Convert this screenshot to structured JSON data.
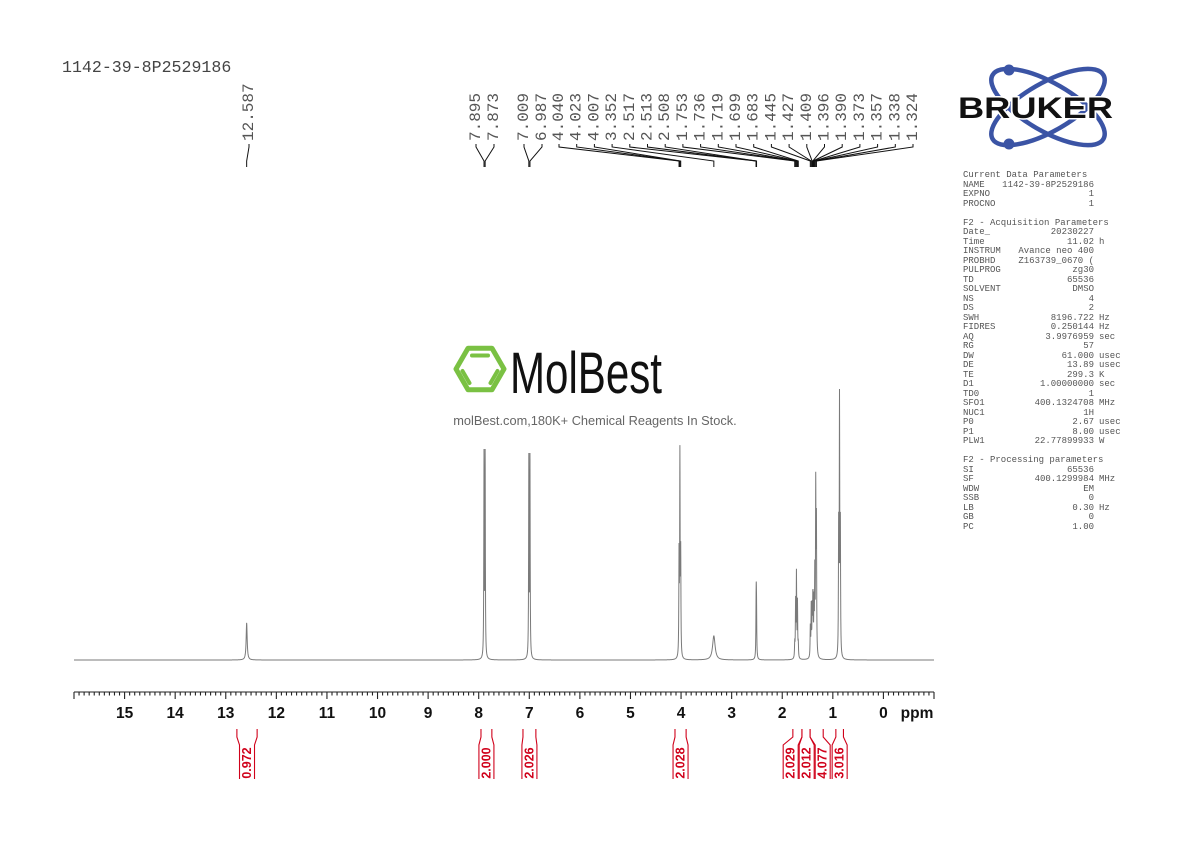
{
  "document": {
    "sample_id": "1142-39-8P2529186"
  },
  "watermark": {
    "brand": "MolBest",
    "tagline": "molBest.com,180K+ Chemical Reagents In Stock.",
    "brand_color": "#7ac143"
  },
  "logo": {
    "brand": "BRUKER",
    "orbit_color": "#3b54a5"
  },
  "parameters": {
    "sections": [
      {
        "title": "Current Data Parameters",
        "rows": [
          {
            "key": "NAME",
            "value": "1142-39-8P2529186",
            "unit": ""
          },
          {
            "key": "EXPNO",
            "value": "1",
            "unit": ""
          },
          {
            "key": "PROCNO",
            "value": "1",
            "unit": ""
          }
        ]
      },
      {
        "title": "F2 - Acquisition Parameters",
        "rows": [
          {
            "key": "Date_",
            "value": "20230227",
            "unit": ""
          },
          {
            "key": "Time",
            "value": "11.02",
            "unit": "h"
          },
          {
            "key": "INSTRUM",
            "value": "Avance neo 400",
            "unit": ""
          },
          {
            "key": "PROBHD",
            "value": "Z163739_0670 (",
            "unit": ""
          },
          {
            "key": "PULPROG",
            "value": "zg30",
            "unit": ""
          },
          {
            "key": "TD",
            "value": "65536",
            "unit": ""
          },
          {
            "key": "SOLVENT",
            "value": "DMSO",
            "unit": ""
          },
          {
            "key": "NS",
            "value": "4",
            "unit": ""
          },
          {
            "key": "DS",
            "value": "2",
            "unit": ""
          },
          {
            "key": "SWH",
            "value": "8196.722",
            "unit": "Hz"
          },
          {
            "key": "FIDRES",
            "value": "0.250144",
            "unit": "Hz"
          },
          {
            "key": "AQ",
            "value": "3.9976959",
            "unit": "sec"
          },
          {
            "key": "RG",
            "value": "57",
            "unit": ""
          },
          {
            "key": "DW",
            "value": "61.000",
            "unit": "usec"
          },
          {
            "key": "DE",
            "value": "13.89",
            "unit": "usec"
          },
          {
            "key": "TE",
            "value": "299.3",
            "unit": "K"
          },
          {
            "key": "D1",
            "value": "1.00000000",
            "unit": "sec"
          },
          {
            "key": "TD0",
            "value": "1",
            "unit": ""
          },
          {
            "key": "SFO1",
            "value": "400.1324708",
            "unit": "MHz"
          },
          {
            "key": "NUC1",
            "value": "1H",
            "unit": ""
          },
          {
            "key": "P0",
            "value": "2.67",
            "unit": "usec"
          },
          {
            "key": "P1",
            "value": "8.00",
            "unit": "usec"
          },
          {
            "key": "PLW1",
            "value": "22.77899933",
            "unit": "W"
          }
        ]
      },
      {
        "title": "F2 - Processing parameters",
        "rows": [
          {
            "key": "SI",
            "value": "65536",
            "unit": ""
          },
          {
            "key": "SF",
            "value": "400.1299984",
            "unit": "MHz"
          },
          {
            "key": "WDW",
            "value": "EM",
            "unit": ""
          },
          {
            "key": "SSB",
            "value": "0",
            "unit": ""
          },
          {
            "key": "LB",
            "value": "0.30",
            "unit": "Hz"
          },
          {
            "key": "GB",
            "value": "0",
            "unit": ""
          },
          {
            "key": "PC",
            "value": "1.00",
            "unit": ""
          }
        ]
      }
    ]
  },
  "chart_data": {
    "type": "line",
    "title": "1142-39-8P2529186",
    "xlabel": "ppm",
    "ylabel": "",
    "xlim": [
      16,
      -1
    ],
    "x_ticks": [
      15,
      14,
      13,
      12,
      11,
      10,
      9,
      8,
      7,
      6,
      5,
      4,
      3,
      2,
      1,
      0
    ],
    "x_tick_labels": [
      "15",
      "14",
      "13",
      "12",
      "11",
      "10",
      "9",
      "8",
      "7",
      "6",
      "5",
      "4",
      "3",
      "2",
      "1",
      "0"
    ],
    "minor_tick_step": 0.1,
    "grid": false,
    "legend": "none",
    "y_scale": "relative intensity (tallest peak = 100)",
    "default_hwhm": 0.005,
    "lines": [
      {
        "ppm": 12.587,
        "intensity": 13.7,
        "hwhm": 0.012
      },
      {
        "ppm": 7.895,
        "intensity": 74.2
      },
      {
        "ppm": 7.873,
        "intensity": 74.2
      },
      {
        "ppm": 7.009,
        "intensity": 72.8
      },
      {
        "ppm": 6.987,
        "intensity": 72.8
      },
      {
        "ppm": 4.04,
        "intensity": 36.5
      },
      {
        "ppm": 4.023,
        "intensity": 73.1
      },
      {
        "ppm": 4.007,
        "intensity": 36.5
      },
      {
        "ppm": 3.352,
        "intensity": 8.9,
        "hwhm": 0.03
      },
      {
        "ppm": 2.517,
        "intensity": 13.0
      },
      {
        "ppm": 2.513,
        "intensity": 14.5
      },
      {
        "ppm": 2.508,
        "intensity": 13.0
      },
      {
        "ppm": 1.753,
        "intensity": 5.1
      },
      {
        "ppm": 1.736,
        "intensity": 20.3
      },
      {
        "ppm": 1.719,
        "intensity": 30.6
      },
      {
        "ppm": 1.699,
        "intensity": 20.3
      },
      {
        "ppm": 1.683,
        "intensity": 5.1
      },
      {
        "ppm": 1.445,
        "intensity": 11.1
      },
      {
        "ppm": 1.427,
        "intensity": 18.5
      },
      {
        "ppm": 1.409,
        "intensity": 16.6
      },
      {
        "ppm": 1.396,
        "intensity": 14.8
      },
      {
        "ppm": 1.39,
        "intensity": 14.8
      },
      {
        "ppm": 1.373,
        "intensity": 18.5
      },
      {
        "ppm": 1.357,
        "intensity": 29.5
      },
      {
        "ppm": 1.338,
        "intensity": 61.3
      },
      {
        "ppm": 1.324,
        "intensity": 48.0
      },
      {
        "ppm": 0.885,
        "intensity": 46.3
      },
      {
        "ppm": 0.868,
        "intensity": 92.6
      },
      {
        "ppm": 0.851,
        "intensity": 46.3
      }
    ],
    "peak_labels": [
      {
        "label": "12.587",
        "ppm": 12.587
      },
      {
        "label": "7.895",
        "ppm": 7.895
      },
      {
        "label": "7.873",
        "ppm": 7.873
      },
      {
        "label": "7.009",
        "ppm": 7.009
      },
      {
        "label": "6.987",
        "ppm": 6.987
      },
      {
        "label": "4.040",
        "ppm": 4.04
      },
      {
        "label": "4.023",
        "ppm": 4.023
      },
      {
        "label": "4.007",
        "ppm": 4.007
      },
      {
        "label": "3.352",
        "ppm": 3.352
      },
      {
        "label": "2.517",
        "ppm": 2.517
      },
      {
        "label": "2.513",
        "ppm": 2.513
      },
      {
        "label": "2.508",
        "ppm": 2.508
      },
      {
        "label": "1.753",
        "ppm": 1.753
      },
      {
        "label": "1.736",
        "ppm": 1.736
      },
      {
        "label": "1.719",
        "ppm": 1.719
      },
      {
        "label": "1.699",
        "ppm": 1.699
      },
      {
        "label": "1.683",
        "ppm": 1.683
      },
      {
        "label": "1.445",
        "ppm": 1.445
      },
      {
        "label": "1.427",
        "ppm": 1.427
      },
      {
        "label": "1.409",
        "ppm": 1.409
      },
      {
        "label": "1.396",
        "ppm": 1.396
      },
      {
        "label": "1.390",
        "ppm": 1.39
      },
      {
        "label": "1.373",
        "ppm": 1.373
      },
      {
        "label": "1.357",
        "ppm": 1.357
      },
      {
        "label": "1.338",
        "ppm": 1.338
      },
      {
        "label": "1.324",
        "ppm": 1.324
      }
    ],
    "integral_color": "#d0021b",
    "integrals": [
      {
        "value": "0.972",
        "from_ppm": 12.78,
        "to_ppm": 12.38
      },
      {
        "value": "2.000",
        "from_ppm": 7.955,
        "to_ppm": 7.74
      },
      {
        "value": "2.026",
        "from_ppm": 7.125,
        "to_ppm": 6.87
      },
      {
        "value": "2.028",
        "from_ppm": 4.12,
        "to_ppm": 3.9
      },
      {
        "value": "2.029",
        "from_ppm": 1.79,
        "to_ppm": 1.61
      },
      {
        "value": "2.012",
        "from_ppm": 1.61,
        "to_ppm": 1.45
      },
      {
        "value": "4.077",
        "from_ppm": 1.45,
        "to_ppm": 1.19
      },
      {
        "value": "3.016",
        "from_ppm": 0.94,
        "to_ppm": 0.79
      }
    ]
  }
}
